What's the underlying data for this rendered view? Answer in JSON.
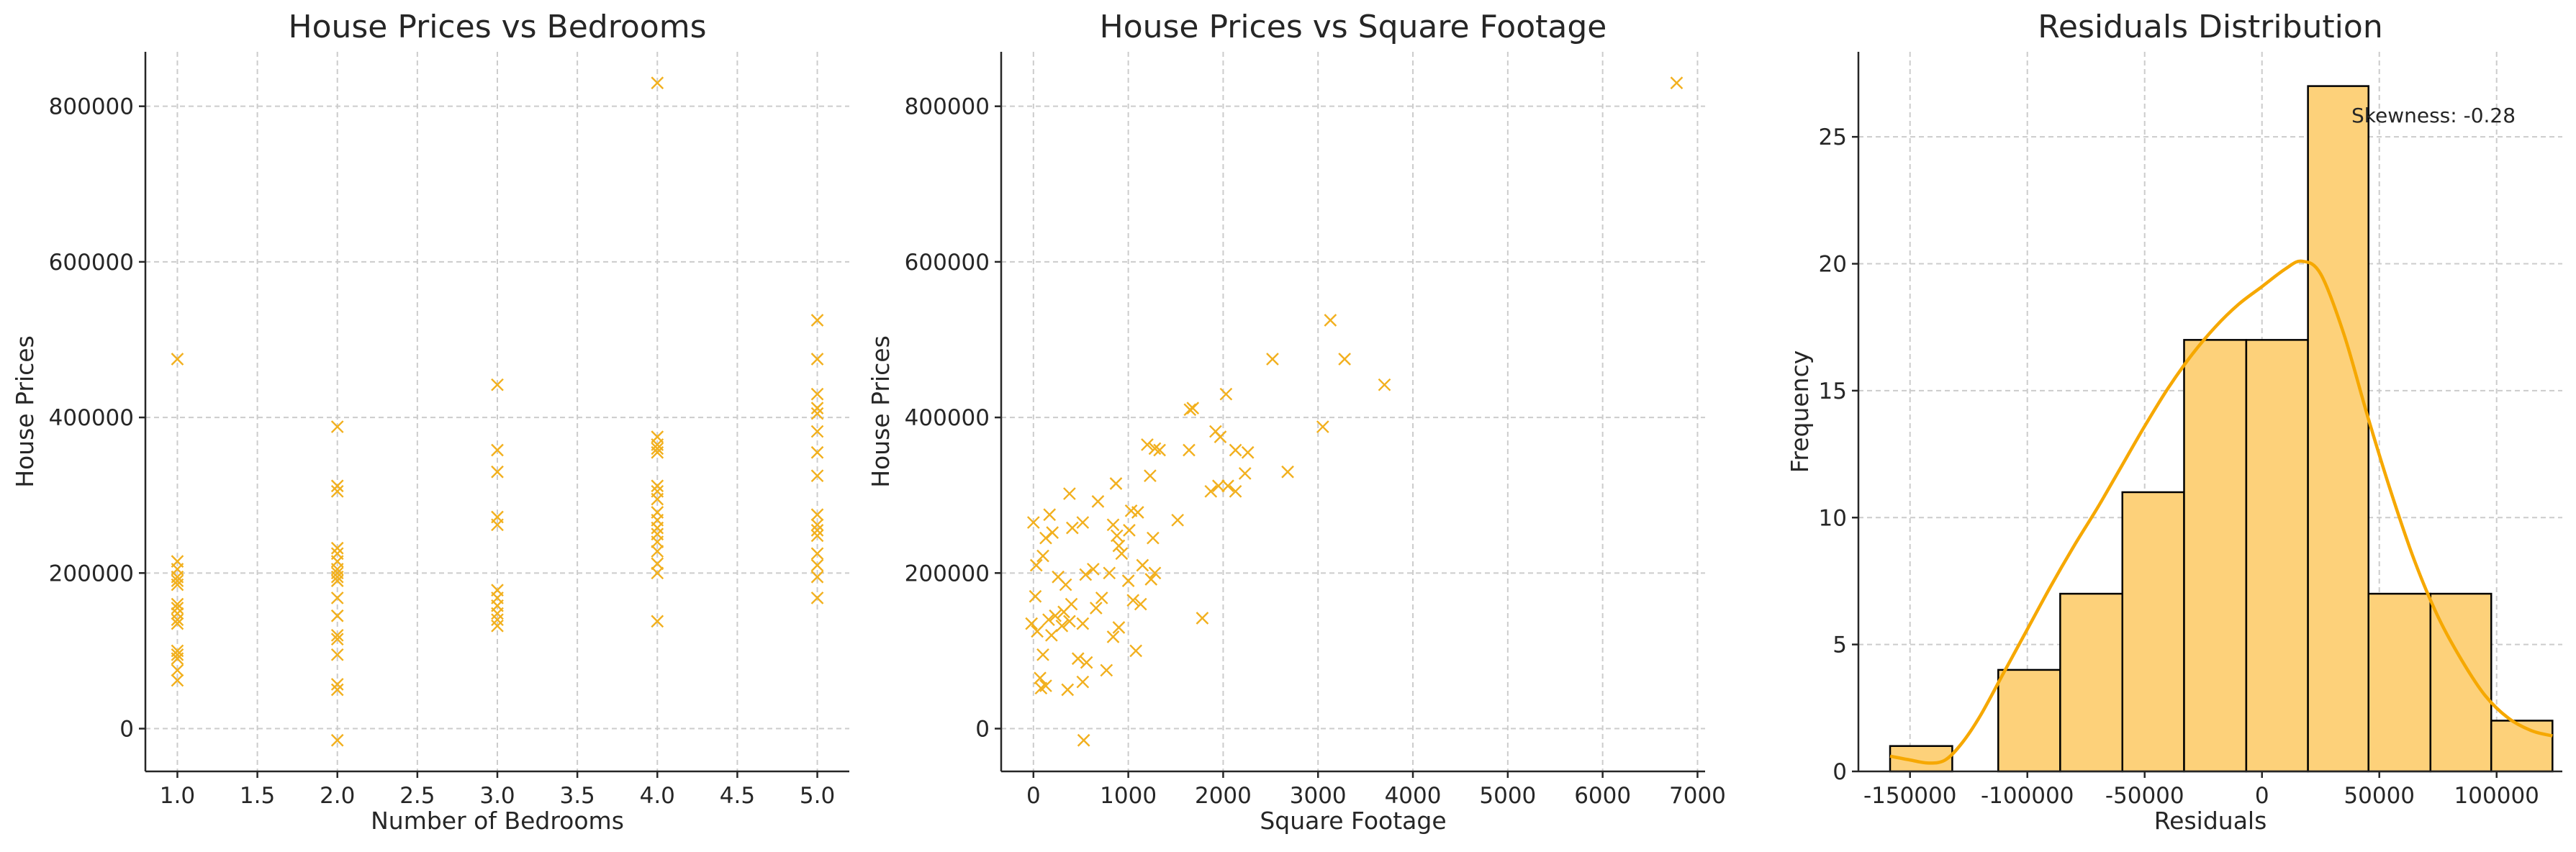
{
  "colors": {
    "marker": "#F2B01E",
    "hist_fill": "#FDD17A",
    "hist_edge": "#000000",
    "kde": "#F6A800"
  },
  "chart_data": [
    {
      "type": "scatter",
      "title": "House Prices vs Bedrooms",
      "xlabel": "Number of Bedrooms",
      "ylabel": "House Prices",
      "marker": "x",
      "grid": true,
      "xlim": [
        0.8,
        5.2
      ],
      "ylim": [
        -55000,
        870000
      ],
      "xticks": [
        1.0,
        1.5,
        2.0,
        2.5,
        3.0,
        3.5,
        4.0,
        4.5,
        5.0
      ],
      "xtick_labels": [
        "1.0",
        "1.5",
        "2.0",
        "2.5",
        "3.0",
        "3.5",
        "4.0",
        "4.5",
        "5.0"
      ],
      "yticks": [
        0,
        200000,
        400000,
        600000,
        800000
      ],
      "ytick_labels": [
        "0",
        "200000",
        "400000",
        "600000",
        "800000"
      ],
      "points": [
        [
          1,
          475000
        ],
        [
          1,
          215000
        ],
        [
          1,
          205000
        ],
        [
          1,
          195000
        ],
        [
          1,
          190000
        ],
        [
          1,
          185000
        ],
        [
          1,
          160000
        ],
        [
          1,
          155000
        ],
        [
          1,
          148000
        ],
        [
          1,
          140000
        ],
        [
          1,
          135000
        ],
        [
          1,
          100000
        ],
        [
          1,
          95000
        ],
        [
          1,
          90000
        ],
        [
          1,
          75000
        ],
        [
          1,
          62000
        ],
        [
          2,
          388000
        ],
        [
          2,
          312000
        ],
        [
          2,
          305000
        ],
        [
          2,
          232000
        ],
        [
          2,
          225000
        ],
        [
          2,
          215000
        ],
        [
          2,
          205000
        ],
        [
          2,
          200000
        ],
        [
          2,
          195000
        ],
        [
          2,
          190000
        ],
        [
          2,
          168000
        ],
        [
          2,
          145000
        ],
        [
          2,
          120000
        ],
        [
          2,
          115000
        ],
        [
          2,
          95000
        ],
        [
          2,
          57000
        ],
        [
          2,
          50000
        ],
        [
          2,
          -15000
        ],
        [
          3,
          442000
        ],
        [
          3,
          358000
        ],
        [
          3,
          330000
        ],
        [
          3,
          272000
        ],
        [
          3,
          262000
        ],
        [
          3,
          178000
        ],
        [
          3,
          168000
        ],
        [
          3,
          158000
        ],
        [
          3,
          148000
        ],
        [
          3,
          140000
        ],
        [
          3,
          132000
        ],
        [
          4,
          830000
        ],
        [
          4,
          375000
        ],
        [
          4,
          365000
        ],
        [
          4,
          360000
        ],
        [
          4,
          355000
        ],
        [
          4,
          312000
        ],
        [
          4,
          305000
        ],
        [
          4,
          295000
        ],
        [
          4,
          278000
        ],
        [
          4,
          268000
        ],
        [
          4,
          258000
        ],
        [
          4,
          250000
        ],
        [
          4,
          240000
        ],
        [
          4,
          228000
        ],
        [
          4,
          212000
        ],
        [
          4,
          200000
        ],
        [
          4,
          138000
        ],
        [
          5,
          525000
        ],
        [
          5,
          475000
        ],
        [
          5,
          430000
        ],
        [
          5,
          412000
        ],
        [
          5,
          405000
        ],
        [
          5,
          382000
        ],
        [
          5,
          355000
        ],
        [
          5,
          325000
        ],
        [
          5,
          275000
        ],
        [
          5,
          262000
        ],
        [
          5,
          255000
        ],
        [
          5,
          248000
        ],
        [
          5,
          225000
        ],
        [
          5,
          210000
        ],
        [
          5,
          195000
        ],
        [
          5,
          168000
        ]
      ]
    },
    {
      "type": "scatter",
      "title": "House Prices vs Square Footage",
      "xlabel": "Square Footage",
      "ylabel": "House Prices",
      "marker": "x",
      "grid": true,
      "xlim": [
        -340,
        7080
      ],
      "ylim": [
        -55000,
        870000
      ],
      "xticks": [
        0,
        1000,
        2000,
        3000,
        4000,
        5000,
        6000,
        7000
      ],
      "xtick_labels": [
        "0",
        "1000",
        "2000",
        "3000",
        "4000",
        "5000",
        "6000",
        "7000"
      ],
      "yticks": [
        0,
        200000,
        400000,
        600000,
        800000
      ],
      "ytick_labels": [
        "0",
        "200000",
        "400000",
        "600000",
        "800000"
      ],
      "points": [
        [
          6780,
          830000
        ],
        [
          3130,
          525000
        ],
        [
          2520,
          475000
        ],
        [
          3280,
          475000
        ],
        [
          3700,
          442000
        ],
        [
          2030,
          430000
        ],
        [
          1680,
          412000
        ],
        [
          1650,
          410000
        ],
        [
          3050,
          388000
        ],
        [
          1920,
          382000
        ],
        [
          1970,
          375000
        ],
        [
          1200,
          365000
        ],
        [
          1280,
          360000
        ],
        [
          1330,
          358000
        ],
        [
          1640,
          358000
        ],
        [
          2130,
          358000
        ],
        [
          2260,
          355000
        ],
        [
          2680,
          330000
        ],
        [
          2230,
          328000
        ],
        [
          1230,
          325000
        ],
        [
          870,
          315000
        ],
        [
          1950,
          312000
        ],
        [
          2050,
          312000
        ],
        [
          1870,
          305000
        ],
        [
          2130,
          305000
        ],
        [
          380,
          302000
        ],
        [
          680,
          292000
        ],
        [
          1030,
          280000
        ],
        [
          1100,
          278000
        ],
        [
          170,
          275000
        ],
        [
          520,
          265000
        ],
        [
          1520,
          268000
        ],
        [
          840,
          262000
        ],
        [
          0,
          265000
        ],
        [
          410,
          258000
        ],
        [
          200,
          252000
        ],
        [
          1010,
          255000
        ],
        [
          130,
          245000
        ],
        [
          880,
          248000
        ],
        [
          1260,
          245000
        ],
        [
          900,
          235000
        ],
        [
          930,
          225000
        ],
        [
          100,
          222000
        ],
        [
          30,
          210000
        ],
        [
          1150,
          210000
        ],
        [
          630,
          205000
        ],
        [
          800,
          200000
        ],
        [
          1280,
          200000
        ],
        [
          550,
          198000
        ],
        [
          260,
          195000
        ],
        [
          1240,
          192000
        ],
        [
          1000,
          190000
        ],
        [
          340,
          185000
        ],
        [
          20,
          170000
        ],
        [
          720,
          168000
        ],
        [
          1050,
          165000
        ],
        [
          400,
          160000
        ],
        [
          1130,
          160000
        ],
        [
          660,
          155000
        ],
        [
          320,
          150000
        ],
        [
          230,
          145000
        ],
        [
          160,
          140000
        ],
        [
          380,
          138000
        ],
        [
          1780,
          142000
        ],
        [
          -20,
          135000
        ],
        [
          300,
          132000
        ],
        [
          520,
          135000
        ],
        [
          900,
          130000
        ],
        [
          40,
          125000
        ],
        [
          190,
          120000
        ],
        [
          840,
          118000
        ],
        [
          1080,
          100000
        ],
        [
          100,
          95000
        ],
        [
          470,
          90000
        ],
        [
          560,
          85000
        ],
        [
          770,
          75000
        ],
        [
          70,
          65000
        ],
        [
          520,
          60000
        ],
        [
          130,
          55000
        ],
        [
          80,
          52000
        ],
        [
          360,
          50000
        ],
        [
          530,
          -15000
        ]
      ]
    },
    {
      "type": "histogram",
      "title": "Residuals Distribution",
      "xlabel": "Residuals",
      "ylabel": "Frequency",
      "grid": true,
      "kde": true,
      "annotation": "Skewness: -0.28",
      "xlim": [
        -172000,
        128000
      ],
      "ylim": [
        0,
        28.35
      ],
      "xticks": [
        -150000,
        -100000,
        -50000,
        0,
        50000,
        100000
      ],
      "xtick_labels": [
        "-150000",
        "-100000",
        "-50000",
        "0",
        "50000",
        "100000"
      ],
      "yticks": [
        0,
        5,
        10,
        15,
        20,
        25
      ],
      "ytick_labels": [
        "0",
        "5",
        "10",
        "15",
        "20",
        "25"
      ],
      "bins": [
        {
          "x0": -158500,
          "x1": -132000,
          "count": 1
        },
        {
          "x0": -132000,
          "x1": -112400,
          "count": 0
        },
        {
          "x0": -112400,
          "x1": -86000,
          "count": 4
        },
        {
          "x0": -86000,
          "x1": -59500,
          "count": 7
        },
        {
          "x0": -59500,
          "x1": -33200,
          "count": 11
        },
        {
          "x0": -33200,
          "x1": -6700,
          "count": 17
        },
        {
          "x0": -6700,
          "x1": 19600,
          "count": 17
        },
        {
          "x0": 19600,
          "x1": 45400,
          "count": 27
        },
        {
          "x0": 45400,
          "x1": 71800,
          "count": 7
        },
        {
          "x0": 71800,
          "x1": 97700,
          "count": 7
        },
        {
          "x0": 97700,
          "x1": 123800,
          "count": 2
        }
      ],
      "kde_points": [
        [
          -158500,
          0.6
        ],
        [
          -150000,
          0.45
        ],
        [
          -142000,
          0.33
        ],
        [
          -135000,
          0.45
        ],
        [
          -128000,
          1.1
        ],
        [
          -120000,
          2.2
        ],
        [
          -110000,
          3.9
        ],
        [
          -100000,
          5.6
        ],
        [
          -90000,
          7.3
        ],
        [
          -80000,
          8.9
        ],
        [
          -70000,
          10.4
        ],
        [
          -60000,
          12.0
        ],
        [
          -50000,
          13.6
        ],
        [
          -40000,
          15.1
        ],
        [
          -30000,
          16.4
        ],
        [
          -20000,
          17.5
        ],
        [
          -10000,
          18.4
        ],
        [
          0,
          19.1
        ],
        [
          10000,
          19.8
        ],
        [
          17000,
          20.1
        ],
        [
          25000,
          19.6
        ],
        [
          35000,
          17.2
        ],
        [
          45000,
          14.0
        ],
        [
          55000,
          11.0
        ],
        [
          65000,
          8.3
        ],
        [
          75000,
          6.1
        ],
        [
          85000,
          4.4
        ],
        [
          95000,
          3.0
        ],
        [
          105000,
          2.1
        ],
        [
          115000,
          1.6
        ],
        [
          123800,
          1.4
        ]
      ]
    }
  ]
}
